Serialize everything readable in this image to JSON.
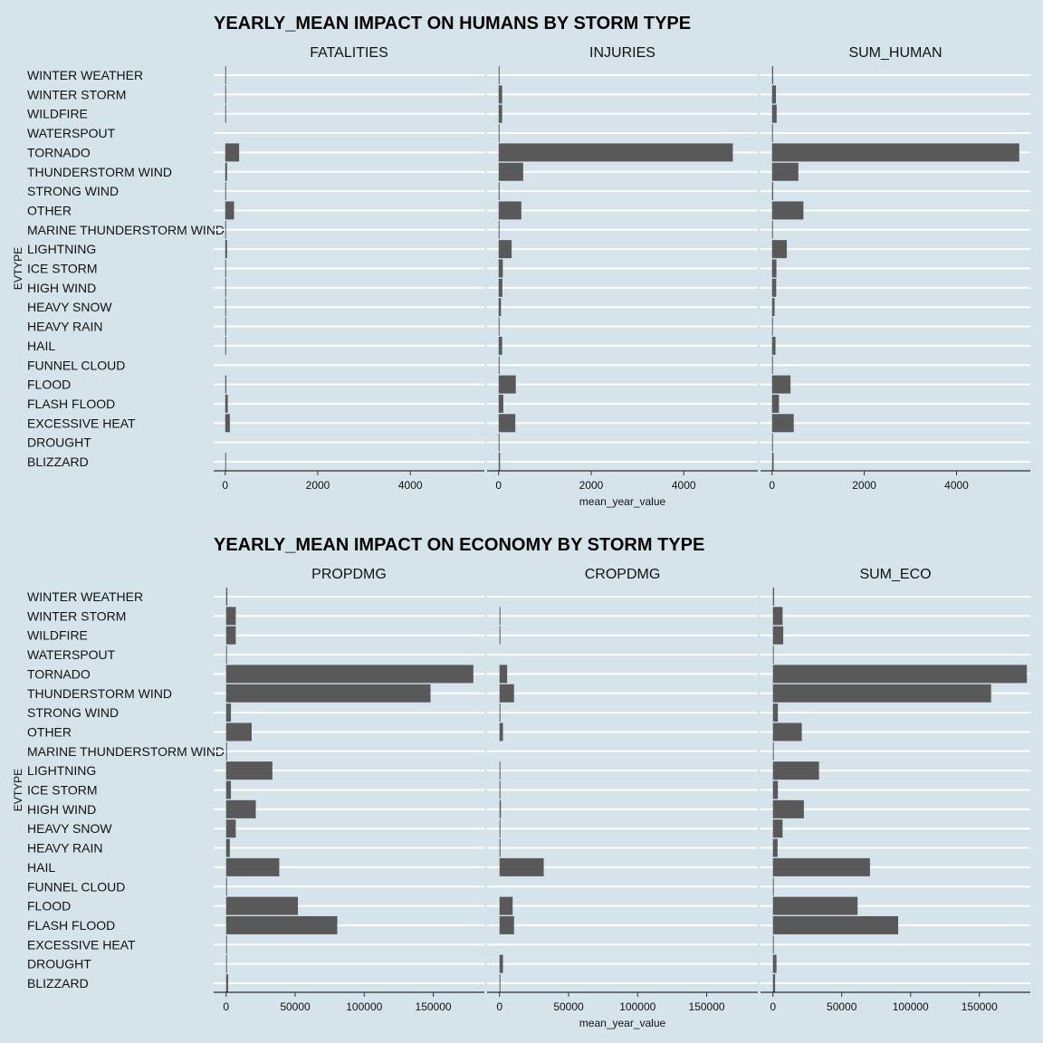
{
  "chart_data": [
    {
      "type": "bar",
      "orientation": "horizontal",
      "title": "YEARLY_MEAN IMPACT ON HUMANS BY STORM TYPE",
      "ylabel": "EVTYPE",
      "xlabel": "mean_year_value",
      "categories": [
        "WINTER WEATHER",
        "WINTER STORM",
        "WILDFIRE",
        "WATERSPOUT",
        "TORNADO",
        "THUNDERSTORM WIND",
        "STRONG WIND",
        "OTHER",
        "MARINE THUNDERSTORM WIND",
        "LIGHTNING",
        "ICE STORM",
        "HIGH WIND",
        "HEAVY SNOW",
        "HEAVY RAIN",
        "HAIL",
        "FUNNEL CLOUD",
        "FLOOD",
        "FLASH FLOOD",
        "EXCESSIVE HEAT",
        "DROUGHT",
        "BLIZZARD"
      ],
      "xlim": [
        -250,
        5600
      ],
      "ticks": [
        0,
        2000,
        4000
      ],
      "tick_labels": [
        "0",
        "2000",
        "4000"
      ],
      "grid": true,
      "series": [
        {
          "name": "FATALITIES",
          "values": [
            3,
            10,
            2,
            0,
            300,
            40,
            5,
            190,
            1,
            40,
            5,
            10,
            2,
            1,
            1,
            0,
            25,
            55,
            100,
            0,
            5
          ]
        },
        {
          "name": "INJURIES",
          "values": [
            20,
            75,
            75,
            2,
            5060,
            530,
            20,
            490,
            5,
            280,
            90,
            80,
            50,
            15,
            75,
            1,
            370,
            100,
            360,
            2,
            30
          ]
        },
        {
          "name": "SUM_HUMAN",
          "values": [
            25,
            85,
            100,
            3,
            5360,
            570,
            25,
            680,
            6,
            320,
            95,
            90,
            55,
            15,
            75,
            1,
            400,
            150,
            470,
            2,
            35
          ]
        }
      ]
    },
    {
      "type": "bar",
      "orientation": "horizontal",
      "title": "YEARLY_MEAN IMPACT ON ECONOMY BY STORM TYPE",
      "ylabel": "EVTYPE",
      "xlabel": "mean_year_value",
      "categories": [
        "WINTER WEATHER",
        "WINTER STORM",
        "WILDFIRE",
        "WATERSPOUT",
        "TORNADO",
        "THUNDERSTORM WIND",
        "STRONG WIND",
        "OTHER",
        "MARINE THUNDERSTORM WIND",
        "LIGHTNING",
        "ICE STORM",
        "HIGH WIND",
        "HEAVY SNOW",
        "HEAVY RAIN",
        "HAIL",
        "FUNNEL CLOUD",
        "FLOOD",
        "FLASH FLOOD",
        "EXCESSIVE HEAT",
        "DROUGHT",
        "BLIZZARD"
      ],
      "xlim": [
        -9000,
        187000
      ],
      "ticks": [
        0,
        50000,
        100000,
        150000
      ],
      "tick_labels": [
        "0",
        "50000",
        "100000",
        "150000"
      ],
      "grid": true,
      "series": [
        {
          "name": "PROPDMG",
          "values": [
            900,
            7000,
            7000,
            400,
            179000,
            148000,
            3500,
            18500,
            30,
            33500,
            3500,
            21500,
            7000,
            2700,
            38500,
            20,
            52000,
            80500,
            80,
            100,
            1500
          ]
        },
        {
          "name": "CROPDMG",
          "values": [
            0,
            30,
            500,
            0,
            5500,
            10500,
            100,
            2500,
            0,
            10,
            60,
            1000,
            50,
            700,
            32000,
            0,
            9500,
            10500,
            0,
            2500,
            100
          ]
        },
        {
          "name": "SUM_ECO",
          "values": [
            900,
            7000,
            7500,
            400,
            184500,
            158500,
            3600,
            21000,
            30,
            33500,
            3600,
            22500,
            7000,
            3400,
            70500,
            20,
            61500,
            91000,
            80,
            2600,
            1600
          ]
        }
      ]
    }
  ]
}
